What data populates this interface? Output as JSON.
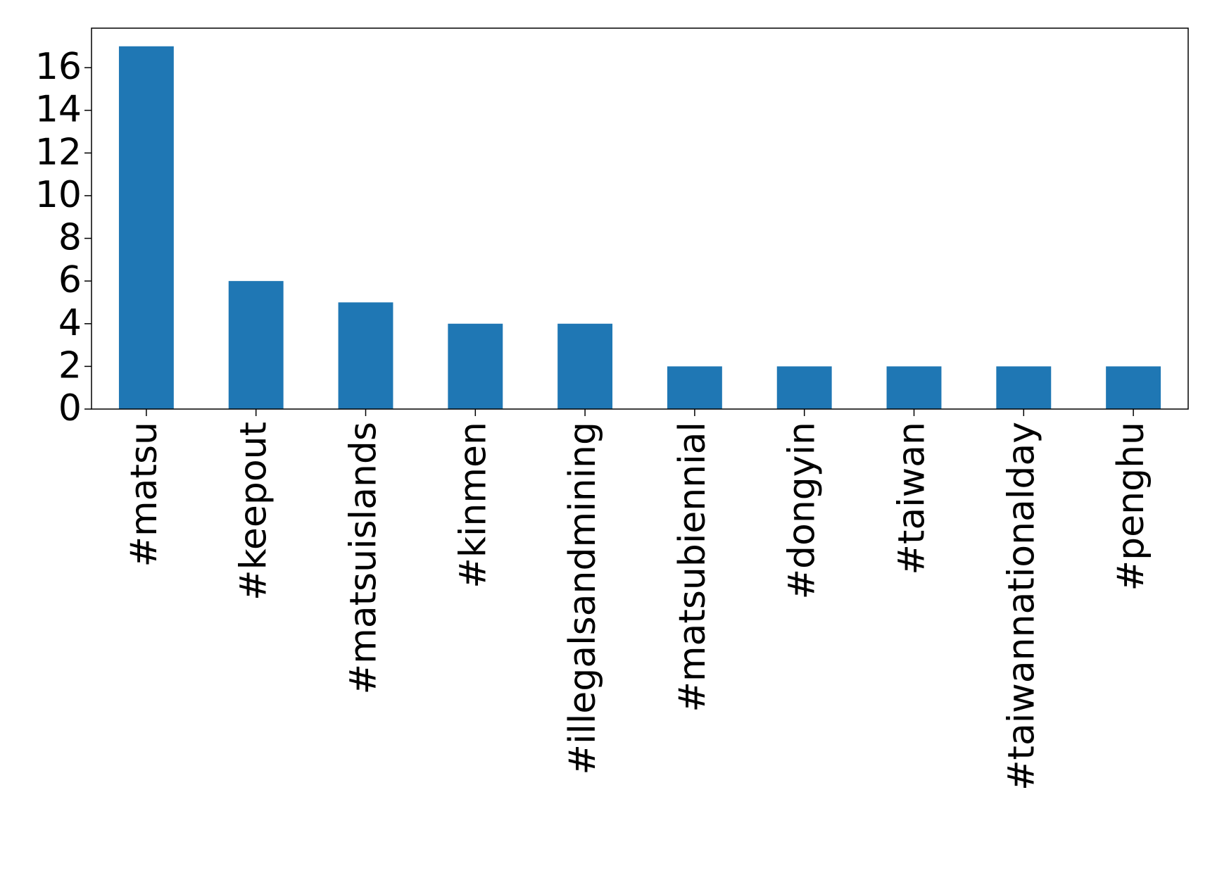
{
  "chart_data": {
    "type": "bar",
    "categories": [
      "#matsu",
      "#keepout",
      "#matsuislands",
      "#kinmen",
      "#illegalsandmining",
      "#matsubiennial",
      "#dongyin",
      "#taiwan",
      "#taiwannationalday",
      "#penghu"
    ],
    "values": [
      17,
      6,
      5,
      4,
      4,
      2,
      2,
      2,
      2,
      2
    ],
    "color": "#1f77b4",
    "ylim": [
      0,
      17.85
    ],
    "yticks": [
      0,
      2,
      4,
      6,
      8,
      10,
      12,
      14,
      16
    ],
    "grid": false
  }
}
